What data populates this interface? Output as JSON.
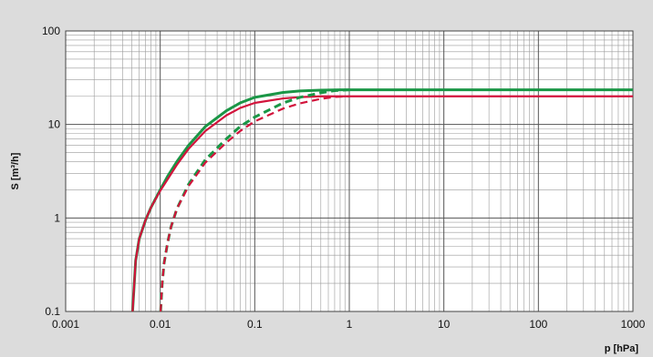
{
  "chart_data": {
    "type": "line",
    "title": "",
    "xlabel": "p [hPa]",
    "ylabel": "S [m³/h]",
    "x_scale": "log",
    "y_scale": "log",
    "xlim": [
      0.001,
      1000
    ],
    "ylim": [
      0.1,
      100
    ],
    "grid": true,
    "x_ticks": [
      "0.001",
      "0.01",
      "0.1",
      "1",
      "10",
      "100",
      "1000"
    ],
    "y_ticks": [
      "0.1",
      "1",
      "10",
      "100"
    ],
    "series": [
      {
        "color": "#1a9646",
        "style": "solid",
        "x": [
          0.0051,
          0.0055,
          0.006,
          0.007,
          0.008,
          0.01,
          0.012,
          0.015,
          0.02,
          0.03,
          0.05,
          0.07,
          0.1,
          0.2,
          0.3,
          0.5,
          0.8,
          1,
          10,
          100,
          1000
        ],
        "y": [
          0.1,
          0.35,
          0.6,
          0.95,
          1.3,
          2.0,
          2.8,
          4.0,
          6.0,
          9.5,
          14.0,
          17.0,
          19.5,
          22.0,
          22.8,
          23.3,
          23.5,
          23.5,
          23.5,
          23.5,
          23.5
        ]
      },
      {
        "color": "#d2143c",
        "style": "solid",
        "x": [
          0.0051,
          0.0055,
          0.006,
          0.007,
          0.008,
          0.01,
          0.012,
          0.015,
          0.02,
          0.03,
          0.05,
          0.07,
          0.1,
          0.2,
          0.3,
          0.5,
          0.8,
          1,
          10,
          100,
          1000
        ],
        "y": [
          0.1,
          0.35,
          0.6,
          0.95,
          1.3,
          1.95,
          2.6,
          3.7,
          5.5,
          8.5,
          12.5,
          15.0,
          17.0,
          19.0,
          19.6,
          20.0,
          20.0,
          20.0,
          20.0,
          20.0,
          20.0
        ]
      },
      {
        "color": "#1a9646",
        "style": "dashed",
        "x": [
          0.0101,
          0.0105,
          0.011,
          0.012,
          0.013,
          0.015,
          0.02,
          0.03,
          0.05,
          0.07,
          0.1,
          0.2,
          0.3,
          0.5,
          0.7,
          1
        ],
        "y": [
          0.1,
          0.2,
          0.33,
          0.55,
          0.8,
          1.25,
          2.3,
          4.2,
          7.0,
          9.5,
          12.0,
          17.0,
          19.5,
          21.8,
          23.0,
          23.5
        ]
      },
      {
        "color": "#d2143c",
        "style": "dashed",
        "x": [
          0.0101,
          0.0105,
          0.011,
          0.012,
          0.013,
          0.015,
          0.02,
          0.03,
          0.05,
          0.07,
          0.1,
          0.2,
          0.3,
          0.5,
          0.7,
          1
        ],
        "y": [
          0.1,
          0.2,
          0.33,
          0.55,
          0.8,
          1.25,
          2.2,
          3.9,
          6.4,
          8.5,
          10.8,
          14.8,
          16.8,
          18.8,
          19.7,
          20.0
        ]
      }
    ]
  }
}
